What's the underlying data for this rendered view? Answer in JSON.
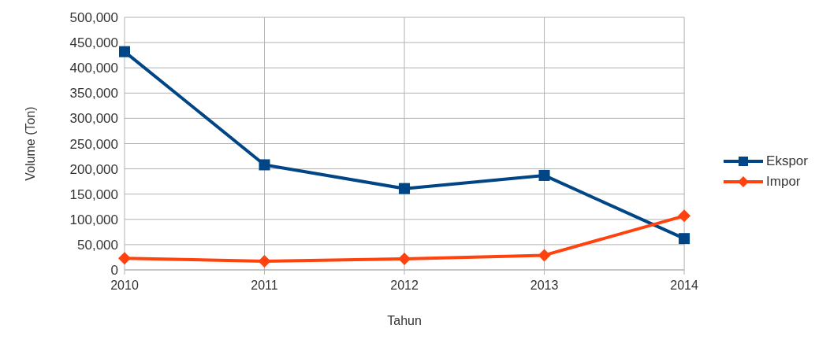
{
  "chart_data": {
    "type": "line",
    "xlabel": "Tahun",
    "ylabel": "Volume (Ton)",
    "categories": [
      "2010",
      "2011",
      "2012",
      "2013",
      "2014"
    ],
    "series": [
      {
        "name": "Ekspor",
        "color": "#004586",
        "marker": "square",
        "values": [
          432000,
          208000,
          161000,
          187000,
          62000
        ]
      },
      {
        "name": "Impor",
        "color": "#ff420e",
        "marker": "diamond",
        "values": [
          23000,
          17000,
          22000,
          29000,
          107000
        ]
      }
    ],
    "ylim": [
      0,
      500000
    ],
    "yticks": [
      0,
      {
        "value": 50000,
        "label": "50,000"
      },
      {
        "value": 100000,
        "label": "100,000"
      },
      {
        "value": 150000,
        "label": "150,000"
      },
      {
        "value": 200000,
        "label": "200,000"
      },
      {
        "value": 250000,
        "label": "250,000"
      },
      {
        "value": 300000,
        "label": "300,000"
      },
      {
        "value": 350000,
        "label": "350,000"
      },
      {
        "value": 400000,
        "label": "400,000"
      },
      {
        "value": 450000,
        "label": "450,000"
      },
      {
        "value": 500000,
        "label": "500,000"
      }
    ],
    "grid": true,
    "legend": "right",
    "line_style": "solid"
  }
}
